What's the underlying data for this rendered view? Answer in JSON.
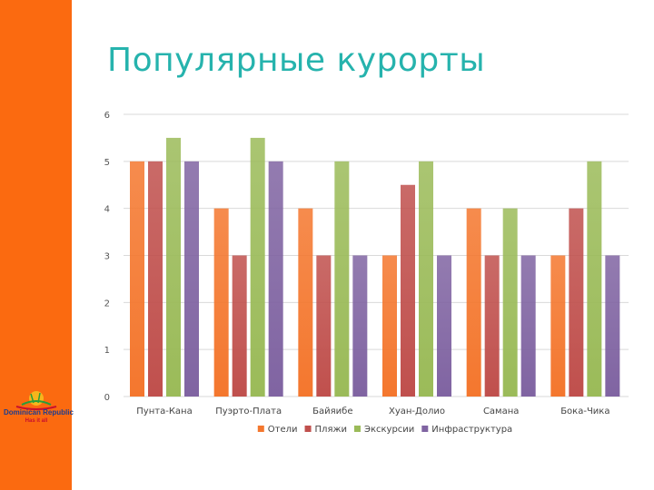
{
  "slide": {
    "title": "Популярные курорты",
    "accent_color": "#fb6a10",
    "title_color": "#26b3ad"
  },
  "logo": {
    "icon": "sun-palm-logo-icon",
    "line1": "Dominican Republic",
    "line2": "Has it all"
  },
  "chart_data": {
    "type": "bar",
    "categories": [
      "Пунта-Кана",
      "Пуэрто-Плата",
      "Байяибе",
      "Хуан-Долио",
      "Самана",
      "Бока-Чика"
    ],
    "series": [
      {
        "name": "Отели",
        "color": "#f4772e",
        "values": [
          5,
          4,
          4,
          3,
          4,
          3
        ]
      },
      {
        "name": "Пляжи",
        "color": "#c0504d",
        "values": [
          5,
          3,
          3,
          4.5,
          3,
          4
        ]
      },
      {
        "name": "Экскурсии",
        "color": "#9bbb59",
        "values": [
          5.5,
          5.5,
          5,
          5,
          4,
          5
        ]
      },
      {
        "name": "Инфраструктура",
        "color": "#8064a2",
        "values": [
          5,
          5,
          3,
          3,
          3,
          3
        ]
      }
    ],
    "ylim": [
      0,
      6
    ],
    "yticks": [
      "0",
      "1",
      "2",
      "3",
      "4",
      "5",
      "6"
    ],
    "grid": true,
    "legend": "bottom"
  }
}
